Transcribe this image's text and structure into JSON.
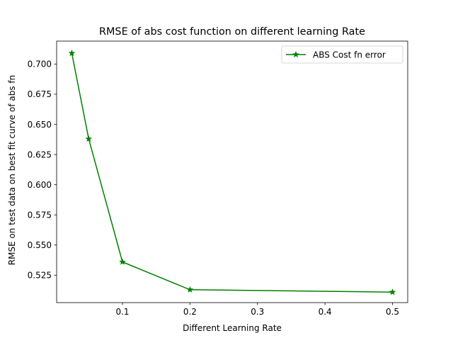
{
  "chart_data": {
    "type": "line",
    "title": "RMSE of abs cost function on different learning Rate",
    "xlabel": "Different Learning Rate",
    "ylabel": "RMSE on test data on best fit curve of abs fn",
    "xlim": [
      0.0025,
      0.5225
    ],
    "ylim": [
      0.5023,
      0.719
    ],
    "x": [
      0.025,
      0.05,
      0.1,
      0.2,
      0.5
    ],
    "xticks": [
      0.1,
      0.2,
      0.3,
      0.4,
      0.5
    ],
    "xtick_labels": [
      "0.1",
      "0.2",
      "0.3",
      "0.4",
      "0.5"
    ],
    "yticks": [
      0.525,
      0.55,
      0.575,
      0.6,
      0.625,
      0.65,
      0.675,
      0.7
    ],
    "ytick_labels": [
      "0.525",
      "0.550",
      "0.575",
      "0.600",
      "0.625",
      "0.650",
      "0.675",
      "0.700"
    ],
    "grid": false,
    "legend_position": "upper right",
    "series": [
      {
        "name": "ABS Cost fn error",
        "color": "#008000",
        "marker": "star",
        "values": [
          0.709,
          0.638,
          0.536,
          0.513,
          0.511
        ]
      }
    ]
  }
}
